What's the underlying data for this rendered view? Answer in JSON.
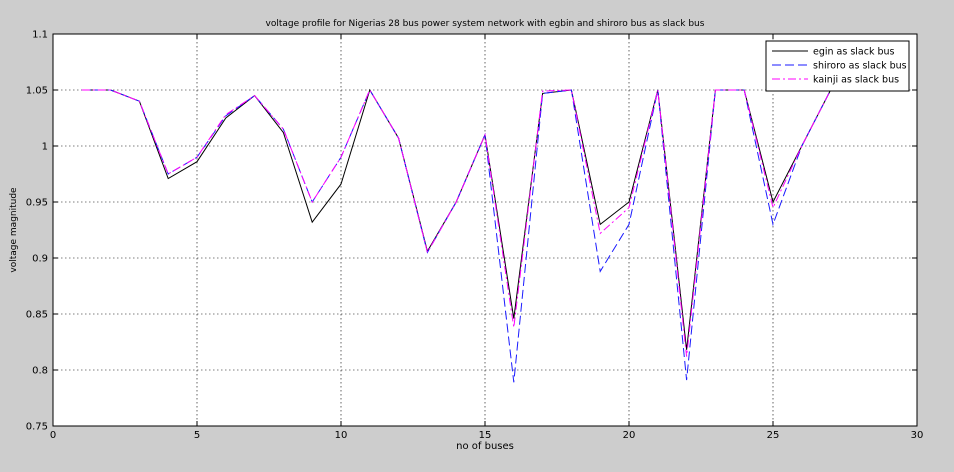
{
  "chart_data": {
    "type": "line",
    "title": "voltage profile for Nigerias 28 bus power system network with egbin and shiroro bus as slack bus",
    "xlabel": "no of buses",
    "ylabel": "voltage magnitude",
    "xlim": [
      0,
      30
    ],
    "ylim": [
      0.75,
      1.1
    ],
    "xticks": [
      0,
      5,
      10,
      15,
      20,
      25,
      30
    ],
    "yticks": [
      0.75,
      0.8,
      0.85,
      0.9,
      0.95,
      1,
      1.05,
      1.1
    ],
    "xtick_labels": [
      "0",
      "5",
      "10",
      "15",
      "20",
      "25",
      "30"
    ],
    "ytick_labels": [
      "0.75",
      "0.8",
      "0.85",
      "0.9",
      "0.95",
      "1",
      "1.05",
      "1.1"
    ],
    "grid": true,
    "legend_position": "top-right",
    "x": [
      1,
      2,
      3,
      4,
      5,
      6,
      7,
      8,
      9,
      10,
      11,
      12,
      13,
      14,
      15,
      16,
      17,
      18,
      19,
      20,
      21,
      22,
      23,
      24,
      25,
      26,
      27,
      28
    ],
    "series": [
      {
        "name": "egin as slack bus",
        "color": "#000000",
        "dash": "solid",
        "values": [
          1.05,
          1.05,
          1.04,
          0.971,
          0.986,
          1.025,
          1.045,
          1.012,
          0.932,
          0.966,
          1.05,
          1.007,
          0.906,
          0.95,
          1.01,
          0.846,
          1.047,
          1.05,
          0.93,
          0.95,
          1.05,
          0.818,
          1.05,
          1.05,
          0.95,
          1.0,
          1.05,
          1.05
        ]
      },
      {
        "name": "shiroro as slack bus",
        "color": "#1a1aff",
        "dash": "dashed",
        "values": [
          1.05,
          1.05,
          1.04,
          0.975,
          0.99,
          1.027,
          1.045,
          1.015,
          0.95,
          0.99,
          1.05,
          1.007,
          0.905,
          0.95,
          1.01,
          0.789,
          1.047,
          1.05,
          0.888,
          0.93,
          1.05,
          0.791,
          1.05,
          1.05,
          0.93,
          1.0,
          1.05,
          1.05
        ]
      },
      {
        "name": "kainji as slack bus",
        "color": "#ff00ff",
        "dash": "dashdot",
        "values": [
          1.05,
          1.05,
          1.04,
          0.975,
          0.99,
          1.028,
          1.045,
          1.015,
          0.95,
          0.99,
          1.05,
          1.007,
          0.905,
          0.95,
          1.01,
          0.838,
          1.049,
          1.05,
          0.922,
          0.945,
          1.05,
          0.812,
          1.05,
          1.05,
          0.945,
          1.0,
          1.05,
          1.05
        ]
      }
    ]
  }
}
